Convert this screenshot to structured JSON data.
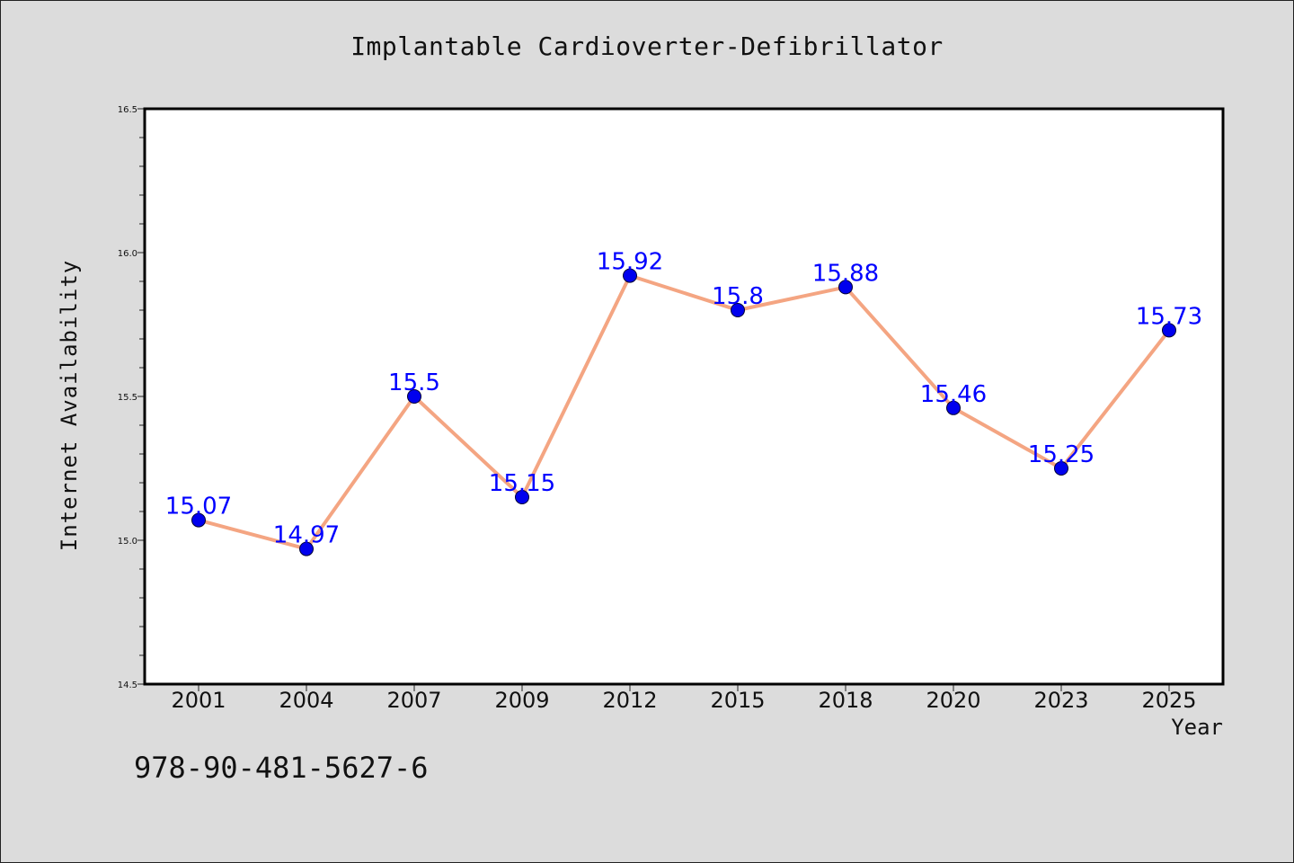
{
  "chart_data": {
    "type": "line",
    "title": "Implantable Cardioverter-Defibrillator",
    "xlabel": "Year",
    "ylabel": "Internet Availability",
    "categories": [
      "2001",
      "2004",
      "2007",
      "2009",
      "2012",
      "2015",
      "2018",
      "2020",
      "2023",
      "2025"
    ],
    "values": [
      15.07,
      14.97,
      15.5,
      15.15,
      15.92,
      15.8,
      15.88,
      15.46,
      15.25,
      15.73
    ],
    "data_labels": [
      "15.07",
      "14.97",
      "15.5",
      "15.15",
      "15.92",
      "15.8",
      "15.88",
      "15.46",
      "15.25",
      "15.73"
    ],
    "ylim": [
      14.5,
      16.5
    ],
    "yticks": [
      "14.5",
      "15.0",
      "15.5",
      "16.0",
      "16.5"
    ],
    "grid": false,
    "line_color": "#f4a582",
    "marker_color": "#0000ee",
    "label_color": "#0000ff"
  },
  "footer": {
    "code": "978-90-481-5627-6"
  }
}
